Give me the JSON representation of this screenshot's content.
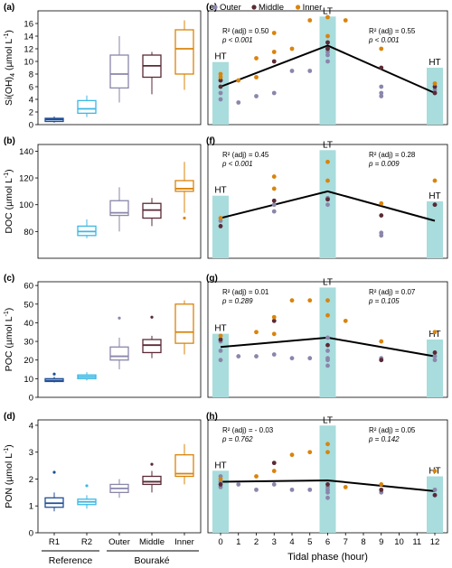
{
  "legend": [
    {
      "name": "Outer",
      "color": "#8a86ab"
    },
    {
      "name": "Middle",
      "color": "#5a2a35"
    },
    {
      "name": "Inner",
      "color": "#d9840b"
    }
  ],
  "colors": {
    "R1": "#1f4e96",
    "R2": "#3bb7e3",
    "Outer": "#8a86ab",
    "Middle": "#5a2a35",
    "Inner": "#d9840b",
    "tide": "#a9dcdc"
  },
  "box_x_labels": [
    "R1",
    "R2",
    "Outer",
    "Middle",
    "Inner"
  ],
  "group_labels": {
    "reference": "Reference",
    "bourake": "Bouraké"
  },
  "tidal_xlabel": "Tidal phase (hour)",
  "tidal_ticks": [
    "0",
    "1",
    "2",
    "3",
    "4",
    "5",
    "6",
    "7",
    "8",
    "9",
    "10",
    "11",
    "12"
  ],
  "panels": [
    {
      "letter": "(a)",
      "ylabel_main": "Si(OH)",
      "ylabel_sub": "4",
      "ylabel_unit": " (µmol L",
      "ylabel_sup": "-1",
      "ylabel_end": ")",
      "ylim": [
        0,
        18
      ],
      "yticks": [
        "0",
        "2",
        "4",
        "6",
        "8",
        "10",
        "12",
        "14",
        "16"
      ],
      "boxes": [
        [
          0.3,
          0.5,
          0.8,
          1.0,
          1.3
        ],
        [
          1.2,
          1.8,
          2.5,
          3.8,
          4.6
        ],
        [
          3.5,
          5.8,
          8.0,
          11.0,
          14.0
        ],
        [
          4.8,
          7.5,
          9.3,
          11.0,
          11.5
        ],
        [
          5.5,
          8.0,
          12.0,
          15.0,
          16.5
        ]
      ],
      "outliers": []
    },
    {
      "letter": "(b)",
      "ylabel_main": "DOC",
      "ylabel_sub": "",
      "ylabel_unit": " (µmol L",
      "ylabel_sup": "-1",
      "ylabel_end": ")",
      "ylim": [
        60,
        145
      ],
      "yticks": [
        "80",
        "100",
        "120",
        "140"
      ],
      "boxes": [
        null,
        [
          75,
          77,
          80,
          84,
          89
        ],
        [
          80,
          92,
          94,
          103,
          113
        ],
        [
          84,
          90,
          96,
          101,
          105
        ],
        [
          94,
          110,
          112,
          118,
          132
        ]
      ],
      "outliers": [
        {
          "box": 4,
          "v": 90
        }
      ]
    },
    {
      "letter": "(c)",
      "ylabel_main": "POC",
      "ylabel_sub": "",
      "ylabel_unit": " (µmol L",
      "ylabel_sup": "-1",
      "ylabel_end": ")",
      "ylim": [
        0,
        62
      ],
      "yticks": [
        "0",
        "10",
        "20",
        "30",
        "40",
        "50",
        "60"
      ],
      "boxes": [
        [
          8,
          8.5,
          9,
          10,
          11
        ],
        [
          9,
          10,
          11,
          12,
          13.5
        ],
        [
          15,
          20,
          22,
          27,
          32
        ],
        [
          21,
          24,
          28,
          31,
          33
        ],
        [
          23,
          29,
          35,
          50,
          52
        ]
      ],
      "outliers": [
        {
          "box": 0,
          "v": 12.5
        },
        {
          "box": 2,
          "v": 42.5
        },
        {
          "box": 3,
          "v": 43
        }
      ]
    },
    {
      "letter": "(d)",
      "ylabel_main": "PON",
      "ylabel_sub": "",
      "ylabel_unit": " (µmol L",
      "ylabel_sup": "-1",
      "ylabel_end": ")",
      "ylim": [
        0,
        4.2
      ],
      "yticks": [
        "0",
        "1",
        "2",
        "3",
        "4"
      ],
      "boxes": [
        [
          0.8,
          0.95,
          1.1,
          1.3,
          1.5
        ],
        [
          0.9,
          1.05,
          1.15,
          1.25,
          1.4
        ],
        [
          1.3,
          1.5,
          1.65,
          1.8,
          2.0
        ],
        [
          1.5,
          1.8,
          1.9,
          2.1,
          2.3
        ],
        [
          1.8,
          2.1,
          2.2,
          2.9,
          3.3
        ]
      ],
      "outliers": [
        {
          "box": 0,
          "v": 2.25
        },
        {
          "box": 1,
          "v": 1.75
        },
        {
          "box": 3,
          "v": 2.55
        }
      ]
    }
  ],
  "chart_data": [
    {
      "type": "box",
      "panel": "(a)",
      "categories": [
        "R1",
        "R2",
        "Outer",
        "Middle",
        "Inner"
      ],
      "ylabel": "Si(OH)4 (µmol L-1)"
    },
    {
      "type": "box",
      "panel": "(b)",
      "categories": [
        "R1",
        "R2",
        "Outer",
        "Middle",
        "Inner"
      ],
      "ylabel": "DOC (µmol L-1)"
    },
    {
      "type": "box",
      "panel": "(c)",
      "categories": [
        "R1",
        "R2",
        "Outer",
        "Middle",
        "Inner"
      ],
      "ylabel": "POC (µmol L-1)"
    },
    {
      "type": "box",
      "panel": "(d)",
      "categories": [
        "R1",
        "R2",
        "Outer",
        "Middle",
        "Inner"
      ],
      "ylabel": "PON (µmol L-1)"
    }
  ],
  "tidal_panels": [
    {
      "letter": "(e)",
      "ylim": [
        0,
        18
      ],
      "ann_left": {
        "r2": "R² (adj) = 0.50",
        "p": "p < 0.001"
      },
      "ann_right": {
        "r2": "R² (adj) = 0.55",
        "p": "p < 0.001"
      },
      "line": [
        [
          0,
          6
        ],
        [
          6,
          12.5
        ],
        [
          12,
          5
        ]
      ],
      "points": {
        "outer": [
          [
            0,
            4
          ],
          [
            0,
            5
          ],
          [
            0,
            7
          ],
          [
            1,
            3.5
          ],
          [
            2,
            4.5
          ],
          [
            3,
            5
          ],
          [
            4,
            8.5
          ],
          [
            5,
            8.5
          ],
          [
            6,
            10
          ],
          [
            6,
            11
          ],
          [
            6,
            11.5
          ],
          [
            6,
            12
          ],
          [
            6,
            13
          ],
          [
            9,
            4.5
          ],
          [
            9,
            5
          ],
          [
            9,
            6
          ],
          [
            12,
            5
          ],
          [
            12,
            5.5
          ]
        ],
        "middle": [
          [
            0,
            6
          ],
          [
            0,
            7
          ],
          [
            3,
            10
          ],
          [
            6,
            12
          ],
          [
            6,
            13
          ],
          [
            9,
            9
          ],
          [
            12,
            5
          ],
          [
            12,
            6
          ]
        ],
        "inner": [
          [
            0,
            7.5
          ],
          [
            0,
            8
          ],
          [
            1,
            7
          ],
          [
            2,
            7.5
          ],
          [
            2,
            10.5
          ],
          [
            3,
            11.5
          ],
          [
            3,
            14.5
          ],
          [
            4,
            12
          ],
          [
            5,
            16.5
          ],
          [
            6,
            14
          ],
          [
            6,
            17
          ],
          [
            7,
            16.5
          ],
          [
            9,
            12
          ],
          [
            12,
            6.5
          ]
        ]
      },
      "tide": [
        "HT",
        "LT",
        "HT"
      ]
    },
    {
      "letter": "(f)",
      "ylim": [
        60,
        145
      ],
      "ann_left": {
        "r2": "R² (adj) = 0.45",
        "p": "p < 0.001"
      },
      "ann_right": {
        "r2": "R² (adj) = 0.28",
        "p": "p = 0.009"
      },
      "line": [
        [
          0,
          90
        ],
        [
          6,
          110
        ],
        [
          12,
          88
        ]
      ],
      "points": {
        "outer": [
          [
            0,
            88
          ],
          [
            3,
            95
          ],
          [
            3,
            100
          ],
          [
            6,
            100
          ],
          [
            6,
            104
          ],
          [
            6,
            105
          ],
          [
            9,
            77
          ],
          [
            9,
            79
          ],
          [
            12,
            100
          ]
        ],
        "middle": [
          [
            0,
            84
          ],
          [
            3,
            103
          ],
          [
            6,
            104
          ],
          [
            9,
            92
          ],
          [
            12,
            100
          ]
        ],
        "inner": [
          [
            0,
            90
          ],
          [
            3,
            112
          ],
          [
            3,
            121
          ],
          [
            6,
            118
          ],
          [
            6,
            132
          ],
          [
            9,
            101
          ],
          [
            12,
            118
          ]
        ]
      },
      "tide": [
        "HT",
        "LT",
        "HT"
      ]
    },
    {
      "letter": "(g)",
      "ylim": [
        0,
        62
      ],
      "ann_left": {
        "r2": "R² (adj) = 0.01",
        "p": "p = 0.289"
      },
      "ann_right": {
        "r2": "R² (adj) = 0.07",
        "p": "p = 0.105"
      },
      "line": [
        [
          0,
          27
        ],
        [
          6,
          32
        ],
        [
          12,
          22
        ]
      ],
      "points": {
        "outer": [
          [
            0,
            20
          ],
          [
            0,
            25
          ],
          [
            0,
            30
          ],
          [
            1,
            22
          ],
          [
            2,
            22
          ],
          [
            3,
            23
          ],
          [
            4,
            21
          ],
          [
            5,
            21
          ],
          [
            6,
            17
          ],
          [
            6,
            20
          ],
          [
            6,
            21
          ],
          [
            6,
            25
          ],
          [
            6,
            32
          ],
          [
            9,
            20
          ],
          [
            9,
            21
          ],
          [
            12,
            22
          ],
          [
            12,
            20
          ]
        ],
        "middle": [
          [
            0,
            31
          ],
          [
            3,
            41
          ],
          [
            6,
            28
          ],
          [
            9,
            20
          ],
          [
            12,
            24
          ]
        ],
        "inner": [
          [
            0,
            33
          ],
          [
            2,
            35
          ],
          [
            3,
            34
          ],
          [
            3,
            43
          ],
          [
            4,
            52
          ],
          [
            5,
            52
          ],
          [
            6,
            44
          ],
          [
            6,
            52
          ],
          [
            7,
            41
          ],
          [
            9,
            30
          ],
          [
            12,
            35
          ]
        ]
      },
      "tide": [
        "HT",
        "LT",
        "HT"
      ]
    },
    {
      "letter": "(h)",
      "ylim": [
        0,
        4.2
      ],
      "ann_left": {
        "r2": "R² (adj) = - 0.03",
        "p": "p = 0.762"
      },
      "ann_right": {
        "r2": "R² (adj) = 0.05",
        "p": "p = 0.142"
      },
      "line": [
        [
          0,
          1.9
        ],
        [
          6,
          1.95
        ],
        [
          12,
          1.55
        ]
      ],
      "points": {
        "outer": [
          [
            0,
            1.7
          ],
          [
            0,
            1.9
          ],
          [
            0,
            2.1
          ],
          [
            1,
            1.8
          ],
          [
            2,
            1.6
          ],
          [
            3,
            1.8
          ],
          [
            4,
            1.6
          ],
          [
            5,
            1.6
          ],
          [
            6,
            1.3
          ],
          [
            6,
            1.5
          ],
          [
            6,
            1.6
          ],
          [
            6,
            1.7
          ],
          [
            9,
            1.5
          ],
          [
            12,
            1.4
          ],
          [
            12,
            1.6
          ]
        ],
        "middle": [
          [
            0,
            1.8
          ],
          [
            3,
            2.6
          ],
          [
            6,
            1.8
          ],
          [
            9,
            1.6
          ],
          [
            12,
            1.4
          ]
        ],
        "inner": [
          [
            0,
            2.0
          ],
          [
            2,
            2.1
          ],
          [
            3,
            2.3
          ],
          [
            4,
            2.9
          ],
          [
            5,
            3.0
          ],
          [
            6,
            3.0
          ],
          [
            6,
            3.3
          ],
          [
            7,
            1.7
          ],
          [
            9,
            1.8
          ],
          [
            12,
            2.3
          ]
        ]
      },
      "tide": [
        "HT",
        "LT",
        "HT"
      ]
    }
  ]
}
